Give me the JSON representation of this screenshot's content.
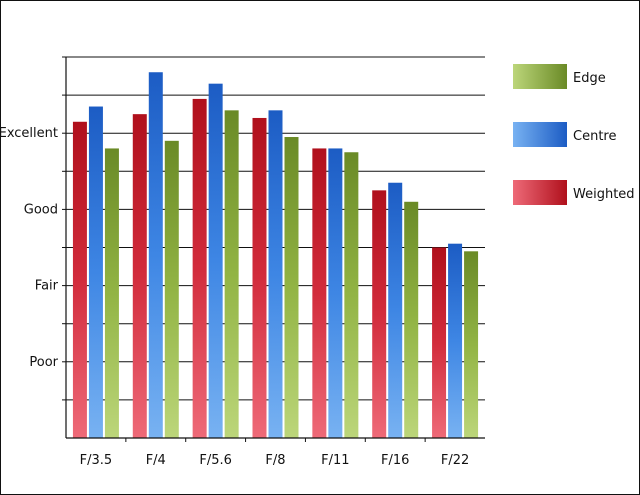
{
  "chart_data": {
    "type": "bar",
    "title": "",
    "xlabel": "",
    "ylabel": "",
    "categories": [
      "F/3.5",
      "F/4",
      "F/5.6",
      "F/8",
      "F/11",
      "F/16",
      "F/22"
    ],
    "y_scale": "ordinal rating",
    "ylim": [
      0,
      10
    ],
    "y_ticks": [
      {
        "value": 2,
        "label": "Poor"
      },
      {
        "value": 4,
        "label": "Fair"
      },
      {
        "value": 6,
        "label": "Good"
      },
      {
        "value": 8,
        "label": "Excellent"
      }
    ],
    "grid": "horizontal gridlines every 1 unit",
    "legend_position": "right",
    "series": [
      {
        "name": "Weighted",
        "color": "#c8202e",
        "values": [
          8.3,
          8.5,
          8.9,
          8.4,
          7.6,
          6.5,
          5.0
        ]
      },
      {
        "name": "Centre",
        "color": "#2a6fd0",
        "values": [
          8.7,
          9.6,
          9.3,
          8.6,
          7.6,
          6.7,
          5.1
        ]
      },
      {
        "name": "Edge",
        "color": "#7a9a2e",
        "values": [
          7.6,
          7.8,
          8.6,
          7.9,
          7.5,
          6.2,
          4.9
        ]
      }
    ],
    "legend_order": [
      "Edge",
      "Centre",
      "Weighted"
    ]
  }
}
